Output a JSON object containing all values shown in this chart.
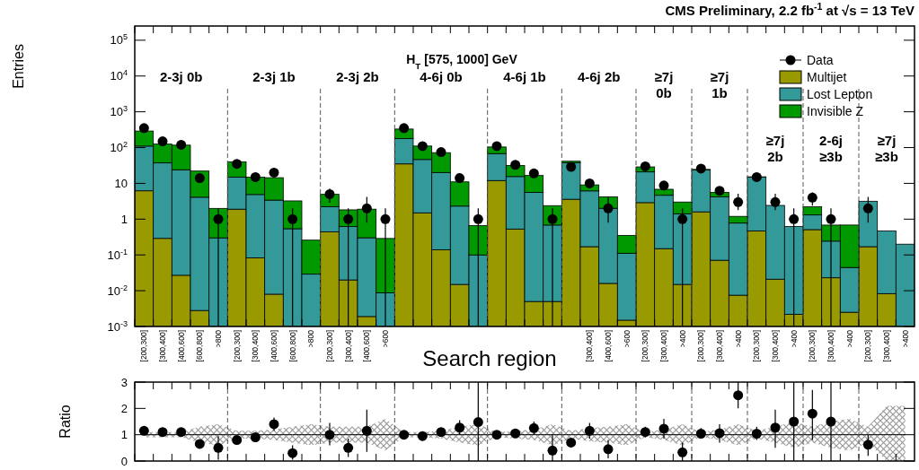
{
  "chart_data": [
    {
      "type": "bar",
      "stacked": true,
      "log": "y",
      "title": "CMS Preliminary,  2.2 fb$^{-1}$ at √s = 13 TeV",
      "subtitle": "H$_{T}$ [575, 1000] GeV",
      "ylabel": "Entries",
      "xlabel": "Search region",
      "legend": "top right",
      "ylim": [
        0.001,
        250000
      ],
      "yticks": [
        {
          "value": 0.001,
          "label": "10$^{-3}$"
        },
        {
          "value": 0.01,
          "label": "10$^{-2}$"
        },
        {
          "value": 0.1,
          "label": "10$^{-1}$"
        },
        1,
        10,
        {
          "value": 100,
          "label": "10$^{2}$"
        },
        {
          "value": 1000,
          "label": "10$^{3}$"
        },
        {
          "value": 10000,
          "label": "10$^{4}$"
        },
        {
          "value": 100000,
          "label": "10$^{5}$"
        }
      ],
      "categories": [
        "[200,300]",
        "[300,400]",
        "[400,600]",
        "[600,800]",
        ">800",
        "[200,300]",
        "[300,400]",
        "[400,600]",
        "[600,800]",
        ">800",
        "[200,300]",
        "[300,400]",
        "[400,600]",
        ">600",
        null,
        null,
        null,
        null,
        null,
        null,
        null,
        null,
        null,
        null,
        "[300,400]",
        "[400,600]",
        ">600",
        "[200,300]",
        "[300,400]",
        ">400",
        "[200,300]",
        "[300,400]",
        ">400",
        "[200,300]",
        "[300,400]",
        ">400",
        "[200,300]",
        "[300,400]",
        ">400",
        "[200,300]",
        "[300,400]",
        ">400"
      ],
      "series": [
        {
          "name": "Multijet",
          "color": "#999900",
          "values": [
            6.2,
            0.29,
            0.027,
            0.0028,
            null,
            1.9,
            0.083,
            0.008,
            null,
            null,
            0.44,
            0.02,
            0.0019,
            null,
            35,
            1.5,
            0.14,
            0.015,
            null,
            12,
            0.53,
            0.005,
            0.005,
            3.6,
            0.17,
            0.016,
            0.0015,
            2.9,
            0.15,
            0.015,
            1.6,
            0.071,
            0.0075,
            0.47,
            0.021,
            0.0022,
            0.51,
            0.023,
            0.0025,
            0.17,
            0.0083,
            null
          ]
        },
        {
          "name": "Lost Lepton",
          "color": "#339999",
          "values": [
            104,
            37,
            24,
            4.1,
            0.3,
            13,
            4.8,
            3.4,
            0.54,
            0.029,
            1.8,
            0.6,
            0.3,
            0.0087,
            143,
            45,
            20,
            2.3,
            0.1,
            56,
            15,
            5.6,
            0.68,
            34,
            6,
            2,
            0.11,
            18,
            4.5,
            1.4,
            22,
            4.1,
            0.77,
            14.5,
            2.4,
            0.62,
            0.8,
            0.22,
            0.042,
            3,
            0.46,
            0.2
          ]
        },
        {
          "name": "Invisible Z",
          "color": "#009900",
          "values": [
            180,
            88,
            93,
            18,
            1.7,
            25,
            10,
            11,
            2.7,
            0.23,
            2.7,
            1.2,
            1.6,
            0.28,
            152,
            64,
            52,
            8.7,
            0.56,
            36,
            16,
            11,
            1.7,
            4,
            2.9,
            2.2,
            0.24,
            8,
            2.2,
            1.6,
            1,
            1.4,
            0.42,
            0.3,
            null,
            null,
            0.9,
            0.44,
            0.64,
            null,
            null,
            null
          ]
        },
        {
          "name": "Data",
          "type": "scatter",
          "color": "#000000",
          "values": [
            350,
            150,
            120,
            14,
            1,
            35,
            15,
            20,
            1,
            null,
            5,
            1,
            2,
            1,
            350,
            110,
            75,
            14,
            1,
            110,
            33,
            19,
            1,
            29,
            10,
            2,
            null,
            30,
            8.7,
            1,
            26,
            6.2,
            3,
            15,
            3,
            1,
            4,
            1,
            null,
            2,
            null,
            null
          ],
          "errors": [
            null,
            null,
            null,
            null,
            [
              0.001,
              2
            ],
            null,
            null,
            null,
            [
              0.001,
              2
            ],
            null,
            [
              2.9,
              7.2
            ],
            [
              0.001,
              2
            ],
            [
              0.8,
              4.2
            ],
            [
              0.001,
              2
            ],
            null,
            null,
            null,
            null,
            [
              0.001,
              2
            ],
            null,
            null,
            null,
            [
              0.001,
              2
            ],
            null,
            null,
            [
              0.8,
              4.2
            ],
            null,
            null,
            null,
            [
              0.001,
              2
            ],
            null,
            null,
            [
              1.8,
              5.1
            ],
            null,
            [
              1.8,
              5.1
            ],
            [
              0.001,
              2
            ],
            [
              2.4,
              5.6
            ],
            [
              0.001,
              2
            ],
            null,
            [
              0.8,
              4.2
            ],
            null,
            null
          ]
        }
      ],
      "annotations": [
        "2-3j 0b",
        "2-3j 1b",
        "2-3j 2b",
        "4-6j 0b",
        "4-6j 1b",
        "4-6j 2b",
        "≥7j 0b",
        "≥7j 1b",
        "≥7j 2b",
        "2-6j ≥3b",
        "≥7j ≥3b"
      ]
    },
    {
      "type": "scatter",
      "ylabel": "Ratio",
      "ylim": [
        0,
        3
      ],
      "yticks": [
        0,
        1,
        2,
        3
      ],
      "tick_labels": "y",
      "categories": [
        null,
        null,
        null,
        null,
        null,
        null,
        null,
        null,
        null,
        null,
        null,
        null,
        null,
        null,
        null,
        null,
        null,
        null,
        null,
        null,
        null,
        null,
        null,
        null,
        null,
        null,
        null,
        null,
        null,
        null,
        null,
        null,
        null,
        null,
        null,
        null,
        null,
        null,
        null,
        null,
        null,
        null
      ],
      "series": [
        {
          "type": "line",
          "color": "#000000",
          "values": [
            1,
            1,
            1,
            1,
            1,
            1,
            1,
            1,
            1,
            1,
            1,
            1,
            1,
            1,
            1,
            1,
            1,
            1,
            1,
            1,
            1,
            1,
            1,
            1,
            1,
            1,
            1,
            1,
            1,
            1,
            1,
            1,
            1,
            1,
            1,
            1,
            1,
            1,
            1,
            1,
            1,
            1
          ],
          "lower": [
            0.9,
            0.9,
            0.9,
            0.7,
            0.6,
            0.85,
            0.85,
            0.8,
            0.7,
            0.6,
            0.7,
            0.7,
            0.7,
            0.4,
            0.9,
            0.9,
            0.85,
            0.7,
            0.6,
            0.9,
            0.85,
            0.8,
            0.6,
            0.85,
            0.75,
            0.7,
            0.6,
            0.9,
            0.8,
            0.6,
            0.9,
            0.8,
            0.6,
            0.85,
            0.7,
            0.5,
            0.7,
            0.5,
            0.4,
            0.7,
            0,
            0
          ],
          "upper": [
            1.1,
            1.1,
            1.1,
            1.3,
            1.4,
            1.15,
            1.15,
            1.2,
            1.3,
            1.4,
            1.3,
            1.3,
            1.3,
            1.6,
            1.1,
            1.1,
            1.15,
            1.3,
            1.4,
            1.1,
            1.15,
            1.2,
            1.4,
            1.15,
            1.25,
            1.3,
            1.4,
            1.1,
            1.2,
            1.4,
            1.1,
            1.2,
            1.4,
            1.15,
            1.3,
            1.5,
            1.3,
            1.5,
            1.6,
            1.3,
            2.1,
            2.1
          ]
        },
        {
          "color": "#000000",
          "values": [
            1.15,
            1.1,
            1.1,
            0.65,
            0.5,
            0.8,
            0.9,
            1.4,
            0.3,
            null,
            1.0,
            0.5,
            1.15,
            null,
            1.0,
            0.95,
            1.1,
            1.27,
            1.48,
            1.0,
            1.05,
            1.25,
            0.4,
            0.7,
            1.15,
            0.45,
            null,
            1.1,
            1.23,
            0.33,
            1.04,
            1.06,
            2.5,
            1.04,
            1.27,
            1.5,
            1.8,
            1.5,
            null,
            0.62,
            null,
            null
          ],
          "errors": [
            null,
            null,
            null,
            [
              0.5,
              0.8
            ],
            [
              0.05,
              0.95
            ],
            [
              0.7,
              0.9
            ],
            [
              0.75,
              1.05
            ],
            [
              1.15,
              1.65
            ],
            [
              0.05,
              0.6
            ],
            null,
            [
              0.6,
              1.45
            ],
            [
              0.15,
              0.85
            ],
            [
              0.35,
              1.95
            ],
            null,
            null,
            null,
            [
              1.0,
              1.2
            ],
            [
              1.0,
              1.55
            ],
            [
              0,
              3
            ],
            null,
            [
              0.9,
              1.2
            ],
            [
              1.0,
              1.5
            ],
            [
              0,
              1.0
            ],
            [
              0.55,
              0.85
            ],
            [
              0.85,
              1.45
            ],
            [
              0.1,
              0.8
            ],
            null,
            [
              0.9,
              1.3
            ],
            [
              0.85,
              1.6
            ],
            [
              0,
              0.7
            ],
            [
              0.85,
              1.25
            ],
            [
              0.7,
              1.4
            ],
            [
              2.0,
              3.0
            ],
            [
              0.8,
              1.3
            ],
            [
              0.5,
              1.95
            ],
            [
              0,
              3
            ],
            [
              0.8,
              2.7
            ],
            [
              0,
              3
            ],
            null,
            [
              0.2,
              1.0
            ],
            null,
            null
          ]
        }
      ]
    }
  ]
}
